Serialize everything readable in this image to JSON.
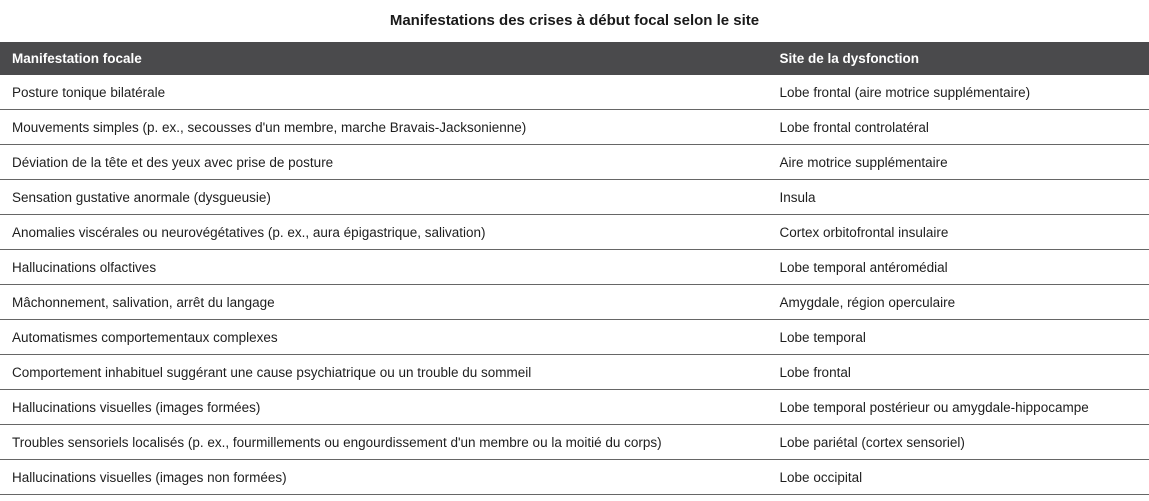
{
  "title": "Manifestations des crises à début focal selon le site",
  "table": {
    "columns": [
      {
        "label": "Manifestation focale"
      },
      {
        "label": "Site de la dysfonction"
      }
    ],
    "rows": [
      {
        "manifestation": "Posture tonique bilatérale",
        "site": "Lobe frontal (aire motrice supplémentaire)"
      },
      {
        "manifestation": "Mouvements simples (p. ex., secousses d'un membre, marche Bravais-Jacksonienne)",
        "site": "Lobe frontal controlatéral"
      },
      {
        "manifestation": "Déviation de la tête et des yeux avec prise de posture",
        "site": "Aire motrice supplémentaire"
      },
      {
        "manifestation": "Sensation gustative anormale (dysgueusie)",
        "site": "Insula"
      },
      {
        "manifestation": "Anomalies viscérales ou neurovégétatives (p. ex., aura épigastrique, salivation)",
        "site": "Cortex orbitofrontal insulaire"
      },
      {
        "manifestation": "Hallucinations olfactives",
        "site": "Lobe temporal antéromédial"
      },
      {
        "manifestation": "Mâchonnement, salivation, arrêt du langage",
        "site": "Amygdale, région operculaire"
      },
      {
        "manifestation": "Automatismes comportementaux complexes",
        "site": "Lobe temporal"
      },
      {
        "manifestation": "Comportement inhabituel suggérant une cause psychiatrique ou un trouble du sommeil",
        "site": "Lobe frontal"
      },
      {
        "manifestation": "Hallucinations visuelles (images formées)",
        "site": "Lobe temporal postérieur ou amygdale-hippocampe"
      },
      {
        "manifestation": "Troubles sensoriels localisés (p. ex., fourmillements ou engourdissement d'un membre ou la moitié du corps)",
        "site": "Lobe pariétal (cortex sensoriel)"
      },
      {
        "manifestation": "Hallucinations visuelles (images non formées)",
        "site": "Lobe occipital"
      }
    ]
  },
  "colors": {
    "header_bg": "#4a4a4c",
    "header_text": "#ffffff",
    "row_border": "#666666",
    "body_text": "#1e1e1e",
    "title_text": "#1a1a1a"
  }
}
